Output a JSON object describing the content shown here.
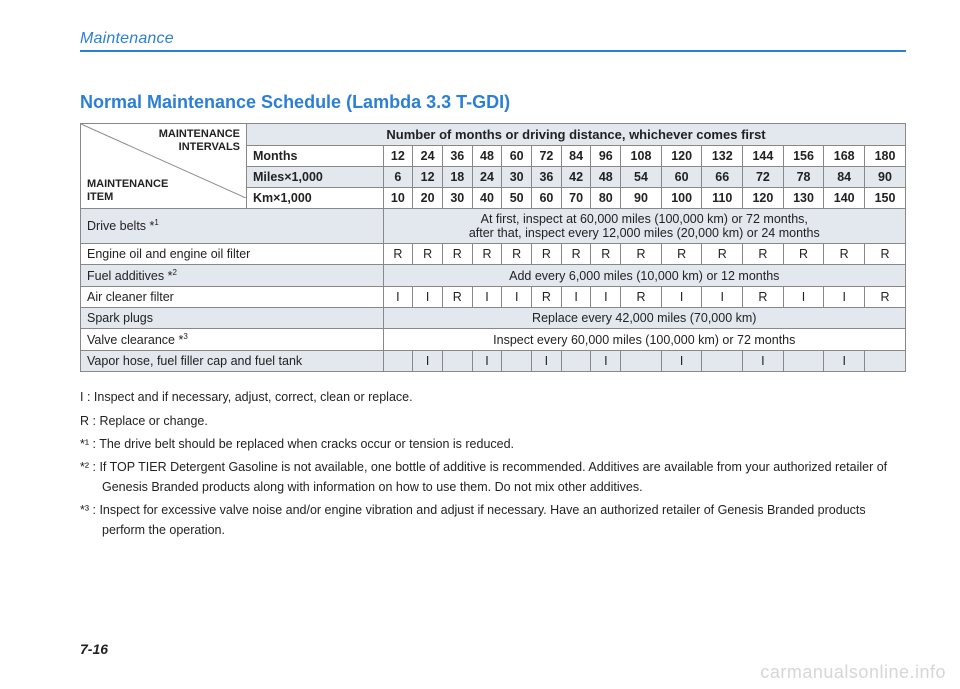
{
  "header": {
    "section": "Maintenance"
  },
  "title": "Normal Maintenance Schedule (Lambda 3.3 T-GDI)",
  "diagonal": {
    "top": "MAINTENANCE INTERVALS",
    "bottom": "MAINTENANCE ITEM"
  },
  "intervals": {
    "caption": "Number of months or driving distance, whichever comes first",
    "rows": [
      {
        "label": "Months",
        "vals": [
          "12",
          "24",
          "36",
          "48",
          "60",
          "72",
          "84",
          "96",
          "108",
          "120",
          "132",
          "144",
          "156",
          "168",
          "180"
        ]
      },
      {
        "label": "Miles×1,000",
        "vals": [
          "6",
          "12",
          "18",
          "24",
          "30",
          "36",
          "42",
          "48",
          "54",
          "60",
          "66",
          "72",
          "78",
          "84",
          "90"
        ]
      },
      {
        "label": "Km×1,000",
        "vals": [
          "10",
          "20",
          "30",
          "40",
          "50",
          "60",
          "70",
          "80",
          "90",
          "100",
          "110",
          "120",
          "130",
          "140",
          "150"
        ]
      }
    ]
  },
  "items": [
    {
      "name": "Drive belts *",
      "fn": "1",
      "merged": "At first, inspect at 60,000 miles (100,000 km) or 72 months,\nafter that, inspect every 12,000 miles (20,000 km) or 24 months",
      "gray": true
    },
    {
      "name": "Engine oil and engine oil filter",
      "cells": [
        "R",
        "R",
        "R",
        "R",
        "R",
        "R",
        "R",
        "R",
        "R",
        "R",
        "R",
        "R",
        "R",
        "R",
        "R"
      ]
    },
    {
      "name": "Fuel additives *",
      "fn": "2",
      "merged": "Add every 6,000 miles (10,000 km) or 12 months",
      "gray": true
    },
    {
      "name": "Air cleaner filter",
      "cells": [
        "I",
        "I",
        "R",
        "I",
        "I",
        "R",
        "I",
        "I",
        "R",
        "I",
        "I",
        "R",
        "I",
        "I",
        "R"
      ]
    },
    {
      "name": "Spark plugs",
      "merged": "Replace every 42,000 miles (70,000 km)",
      "gray": true
    },
    {
      "name": "Valve clearance *",
      "fn": "3",
      "merged": "Inspect every 60,000 miles (100,000 km) or 72 months"
    },
    {
      "name": "Vapor hose, fuel filler cap and fuel tank",
      "cells": [
        "",
        "I",
        "",
        "I",
        "",
        "I",
        "",
        "I",
        "",
        "I",
        "",
        "I",
        "",
        "I",
        ""
      ],
      "gray": true
    }
  ],
  "legend": {
    "i": "I   : Inspect and if necessary, adjust, correct, clean or replace.",
    "r": "R  : Replace or change.",
    "f1": "*¹ : The drive belt should be replaced when cracks occur or tension is reduced.",
    "f2": "*² : If TOP TIER Detergent Gasoline is not available, one bottle of additive is recommended. Additives are available from your authorized retailer of Genesis Branded products along with information on how to use them. Do not mix other additives.",
    "f3": "*³ : Inspect for excessive valve noise and/or engine vibration and adjust if necessary. Have an authorized retailer of Genesis Branded products perform the operation."
  },
  "pagenum": "7-16",
  "watermark": "carmanualsonline.info",
  "style": {
    "num_cols": 15,
    "accent": "#2c7fd6",
    "gray_bg": "#e2e8ee"
  }
}
